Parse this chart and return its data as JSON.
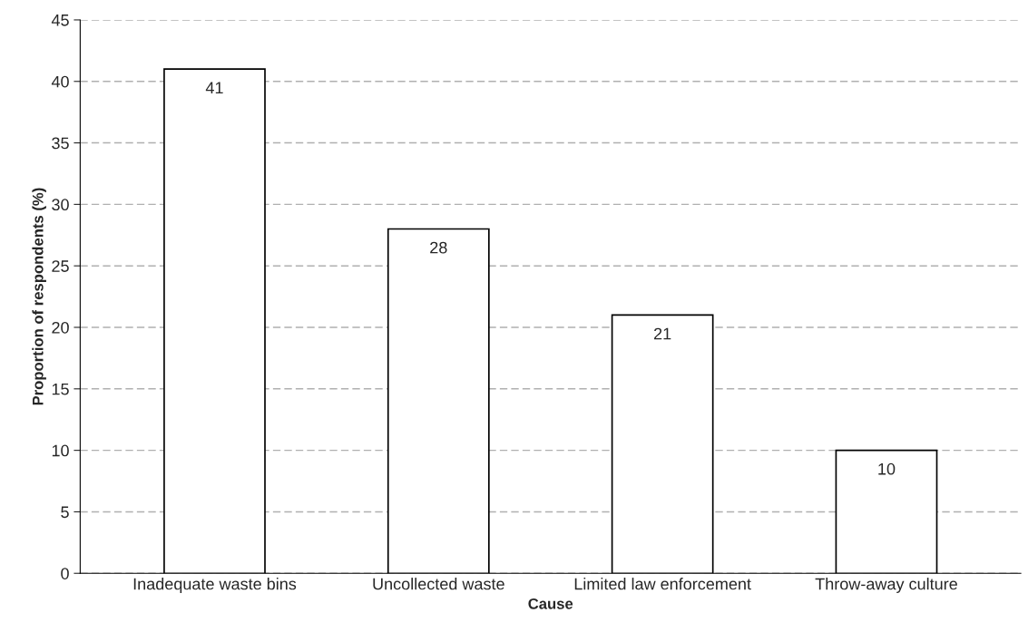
{
  "chart_data": {
    "type": "bar",
    "xlabel": "Cause",
    "ylabel": "Proportion of respondents (%)",
    "categories": [
      "Inadequate waste bins",
      "Uncollected waste",
      "Limited law enforcement",
      "Throw-away culture"
    ],
    "values": [
      41,
      28,
      21,
      10
    ],
    "color": "#ffffff",
    "ylim": [
      0,
      45
    ],
    "yticks": [
      0,
      5,
      10,
      15,
      20,
      25,
      30,
      35,
      40,
      45
    ],
    "grid": "y",
    "data_labels": true
  }
}
